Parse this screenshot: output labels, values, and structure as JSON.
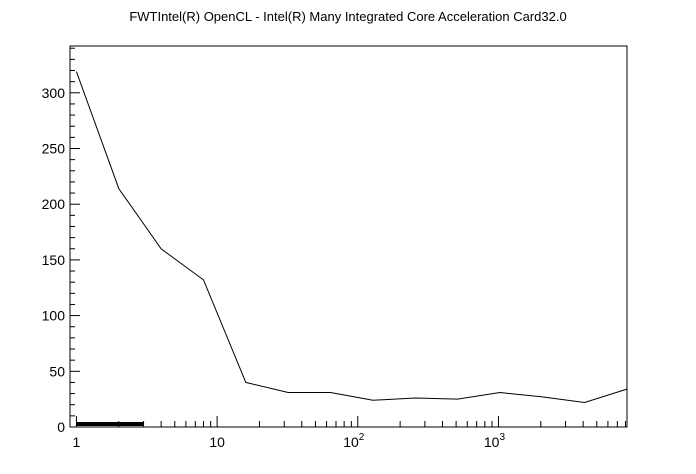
{
  "chart_data": {
    "type": "line",
    "title": "FWTIntel(R) OpenCL - Intel(R) Many Integrated Core Acceleration Card32.0",
    "xlabel": "",
    "ylabel": "",
    "x_scale": "log",
    "xlim": [
      0.9,
      8200
    ],
    "ylim": [
      0,
      342
    ],
    "grid": false,
    "legend": "none",
    "x_tick_labels": [
      "1",
      "10",
      "10^2",
      "10^3"
    ],
    "y_tick_labels": [
      "0",
      "50",
      "100",
      "150",
      "200",
      "250",
      "300"
    ],
    "series": [
      {
        "x": [
          1,
          2,
          4,
          8,
          16,
          32,
          64,
          128,
          256,
          512,
          1024,
          2048,
          4096,
          8192
        ],
        "values": [
          319,
          214,
          160,
          132,
          40,
          31,
          31,
          24,
          26,
          25,
          31,
          27,
          22,
          34
        ]
      }
    ],
    "line_color": "#000000"
  }
}
